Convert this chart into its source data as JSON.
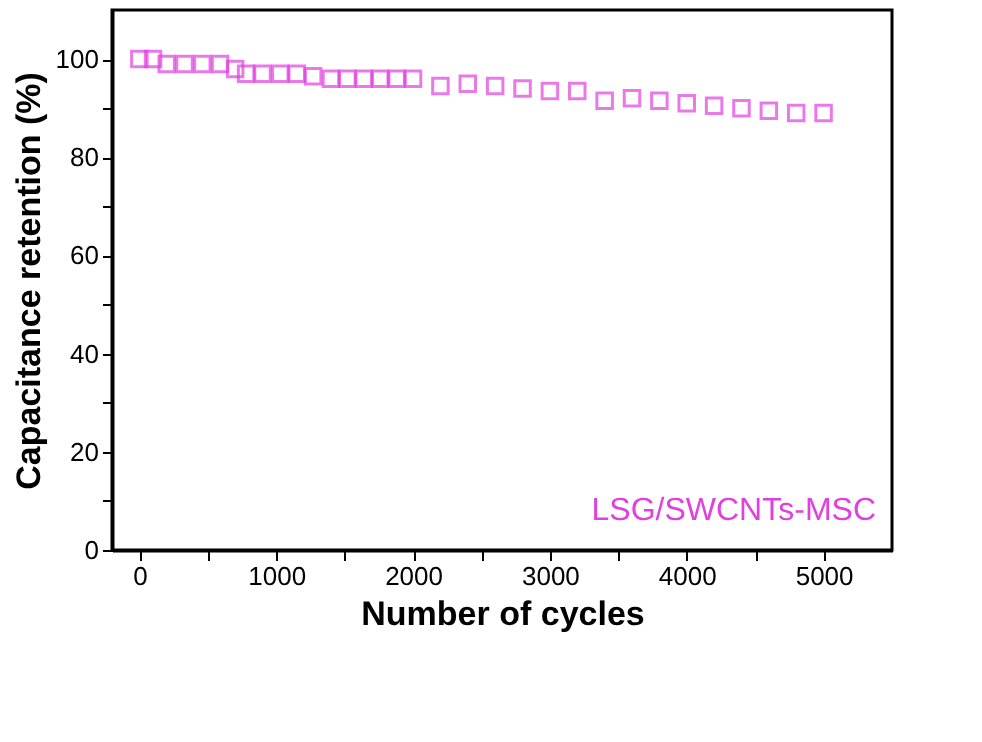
{
  "chart_data": {
    "type": "scatter",
    "xlabel": "Number of cycles",
    "ylabel": "Capacitance retention (%)",
    "x": [
      0,
      100,
      200,
      330,
      460,
      590,
      700,
      780,
      900,
      1030,
      1150,
      1270,
      1400,
      1520,
      1640,
      1760,
      1880,
      2000,
      2200,
      2400,
      2600,
      2800,
      3000,
      3200,
      3400,
      3600,
      3800,
      4000,
      4200,
      4400,
      4600,
      4800,
      5000
    ],
    "series": [
      {
        "name": "LSG/SWCNTs-MSC",
        "color": "#e040e0",
        "values": [
          100,
          100,
          99,
          99,
          99,
          99,
          98,
          97,
          97,
          97,
          97,
          96.5,
          96,
          96,
          96,
          96,
          96,
          96,
          94.5,
          95,
          94.5,
          94,
          93.5,
          93.5,
          91.5,
          92,
          91.5,
          91,
          90.5,
          90,
          89.5,
          89,
          89
        ]
      }
    ],
    "xlim": [
      -200,
      5500
    ],
    "ylim": [
      0,
      110
    ],
    "xticks": [
      0,
      {
        "value": 500,
        "label": null
      },
      1000,
      {
        "value": 1500,
        "label": null
      },
      2000,
      {
        "value": 2500,
        "label": null
      },
      3000,
      {
        "value": 3500,
        "label": null
      },
      4000,
      {
        "value": 4500,
        "label": null
      },
      5000
    ],
    "yticks": [
      0,
      {
        "value": 10,
        "label": null
      },
      20,
      {
        "value": 30,
        "label": null
      },
      40,
      {
        "value": 50,
        "label": null
      },
      60,
      {
        "value": 70,
        "label": null
      },
      80,
      {
        "value": 90,
        "label": null
      },
      100
    ],
    "marker": "square",
    "legend": "bottom right",
    "grid": false
  }
}
